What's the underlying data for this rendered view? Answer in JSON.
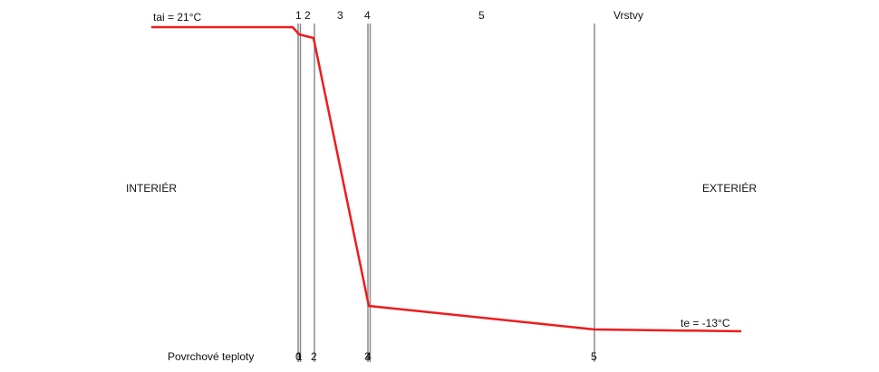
{
  "labels": {
    "tai": "tai = 21°C",
    "te": "te = -13°C",
    "interior": "INTERIÉR",
    "exterior": "EXTERIÉR",
    "layers_title": "Vrstvy",
    "surface_temps": "Povrchové teploty"
  },
  "layer_numbers": [
    "1",
    "2",
    "3",
    "4",
    "5"
  ],
  "boundary_numbers": [
    "0",
    "1",
    "2",
    "3",
    "4",
    "5"
  ],
  "colors": {
    "temperature_line": "#ee1c1c",
    "boundary_line": "#8a8a8a",
    "text": "#111111"
  }
}
